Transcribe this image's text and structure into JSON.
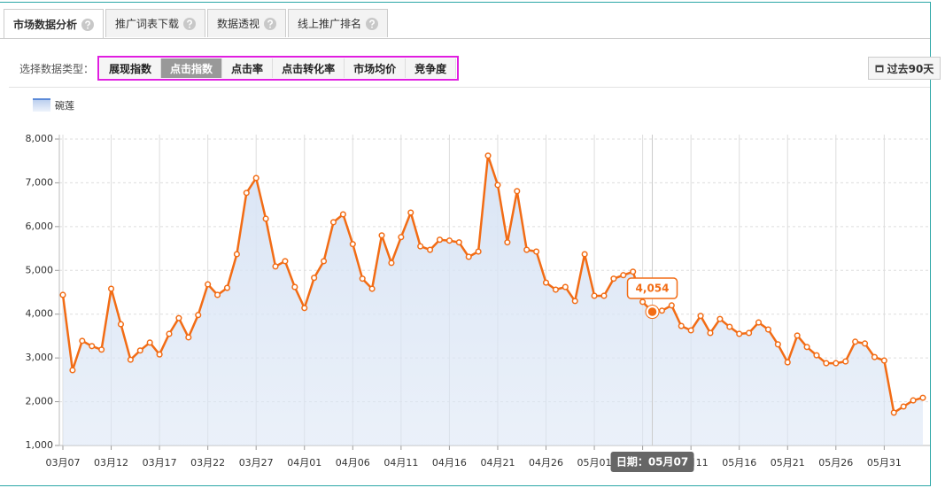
{
  "tabs": [
    {
      "label": "市场数据分析",
      "active": true
    },
    {
      "label": "推广词表下载",
      "active": false
    },
    {
      "label": "数据透视",
      "active": false
    },
    {
      "label": "线上推广排名",
      "active": false
    }
  ],
  "filter": {
    "label": "选择数据类型：",
    "options": [
      "展现指数",
      "点击指数",
      "点击率",
      "点击转化率",
      "市场均价",
      "竞争度"
    ],
    "active": 1
  },
  "range_button": "过去90天",
  "chart_data": {
    "type": "line",
    "series": [
      {
        "name": "碗莲",
        "color": "#f26c15",
        "area_color": "#dae5f5",
        "values": [
          4440,
          2720,
          3390,
          3270,
          3190,
          4580,
          3770,
          2960,
          3170,
          3350,
          3080,
          3550,
          3910,
          3470,
          3980,
          4680,
          4440,
          4600,
          5370,
          6770,
          7110,
          6180,
          5090,
          5210,
          4620,
          4140,
          4830,
          5210,
          6100,
          6280,
          5600,
          4810,
          4580,
          5800,
          5170,
          5760,
          6320,
          5550,
          5470,
          5700,
          5680,
          5640,
          5310,
          5430,
          7620,
          6950,
          5640,
          6810,
          5470,
          5430,
          4720,
          4560,
          4620,
          4300,
          5370,
          4420,
          4420,
          4810,
          4890,
          4970,
          4280,
          4054,
          4080,
          4200,
          3730,
          3630,
          3960,
          3570,
          3890,
          3710,
          3550,
          3570,
          3810,
          3650,
          3310,
          2900,
          3510,
          3250,
          3060,
          2880,
          2880,
          2920,
          3370,
          3330,
          3020,
          2940,
          1750,
          1890,
          2030,
          2090
        ],
        "value_labels": [
          null,
          null,
          null,
          null,
          null,
          null,
          null,
          null,
          null,
          null,
          null,
          null,
          null,
          null,
          null,
          null,
          null,
          null,
          null,
          null,
          null,
          null,
          null,
          null,
          null,
          null,
          null,
          null,
          null,
          null,
          null,
          null,
          null,
          null,
          null,
          null,
          null,
          null,
          null,
          null,
          null,
          null,
          null,
          null,
          null,
          null,
          null,
          null,
          null,
          null,
          null,
          null,
          null,
          null,
          null,
          null,
          null,
          null,
          null,
          null,
          null,
          "4,054",
          null,
          null,
          null,
          null,
          null,
          null,
          null,
          null,
          null,
          null,
          null,
          null,
          null,
          null,
          null,
          null,
          null,
          null,
          null,
          null,
          null,
          null,
          null,
          null,
          null,
          null,
          null,
          null
        ]
      }
    ],
    "categories": [
      "03月07",
      null,
      null,
      null,
      null,
      "03月12",
      null,
      null,
      null,
      null,
      "03月17",
      null,
      null,
      null,
      null,
      "03月22",
      null,
      null,
      null,
      null,
      "03月27",
      null,
      null,
      null,
      null,
      "04月01",
      null,
      null,
      null,
      null,
      "04月06",
      null,
      null,
      null,
      null,
      "04月11",
      null,
      null,
      null,
      null,
      "04月16",
      null,
      null,
      null,
      null,
      "04月21",
      null,
      null,
      null,
      null,
      "04月26",
      null,
      null,
      null,
      null,
      "05月01",
      null,
      null,
      null,
      null,
      "05月06",
      null,
      null,
      null,
      null,
      "05月11",
      null,
      null,
      null,
      null,
      "05月16",
      null,
      null,
      null,
      null,
      "05月21",
      null,
      null,
      null,
      null,
      "05月26",
      null,
      null,
      null,
      null,
      "05月31",
      null,
      null,
      null,
      null
    ],
    "tooltip": "日期：05月07",
    "ylim": [
      1000,
      8000
    ],
    "yticks": [
      {
        "value": 1000,
        "label": "1,000"
      },
      {
        "value": 2000,
        "label": "2,000"
      },
      {
        "value": 3000,
        "label": "3,000"
      },
      {
        "value": 4000,
        "label": "4,000"
      },
      {
        "value": 5000,
        "label": "5,000"
      },
      {
        "value": 6000,
        "label": "6,000"
      },
      {
        "value": 7000,
        "label": "7,000"
      },
      {
        "value": 8000,
        "label": "8,000"
      }
    ],
    "grid": true
  }
}
